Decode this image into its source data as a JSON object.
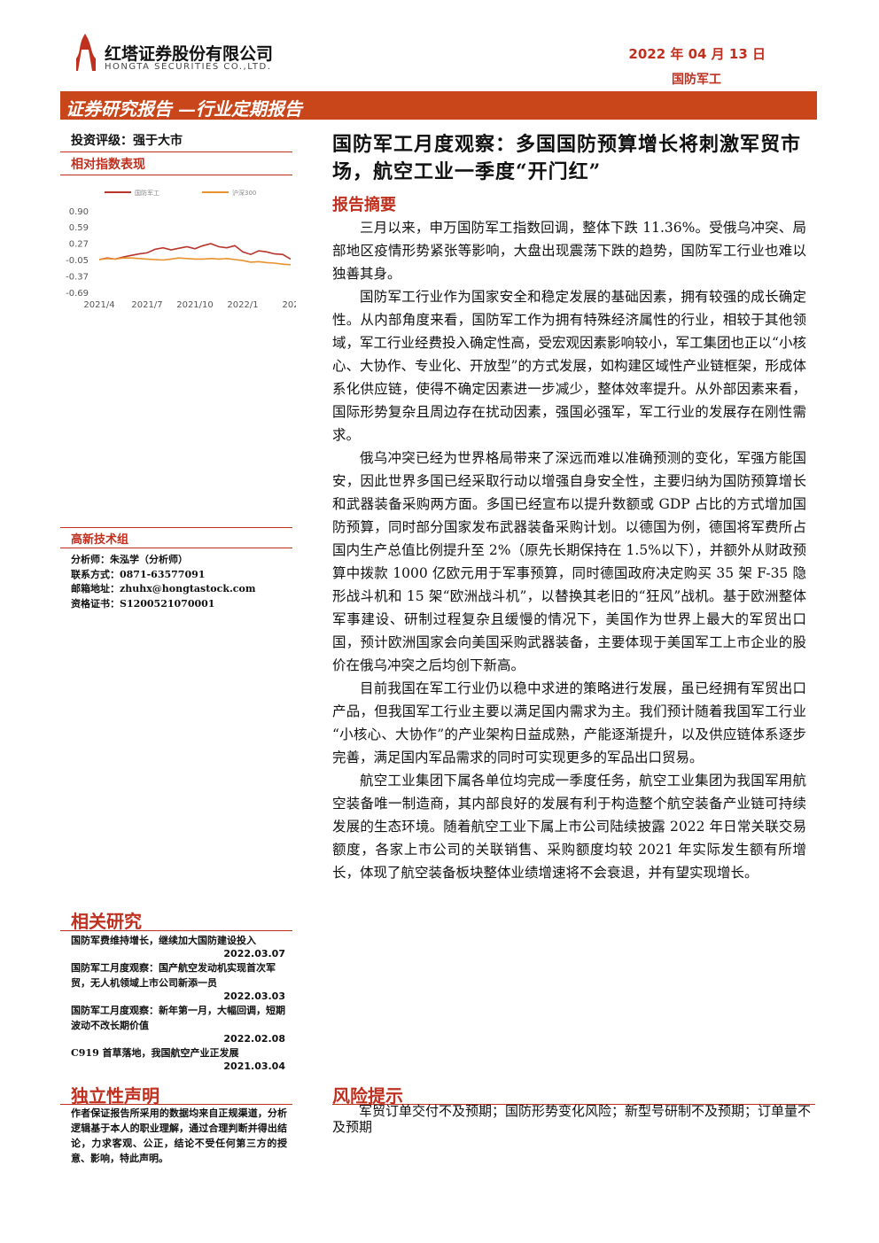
{
  "header": {
    "company": "红塔证券股份有限公司",
    "company_en": "HONGTA SECURITIES CO.,LTD.",
    "date": "2022 年 04 月 13 日",
    "industry": "国防军工",
    "banner": "证券研究报告 —行业定期报告"
  },
  "left": {
    "rating": "投资评级：强于大市",
    "chart_heading": "相对指数表现"
  },
  "chart_data": {
    "type": "line",
    "categories": [
      "2021/4",
      null,
      null,
      null,
      null,
      null,
      "2021/7",
      null,
      null,
      null,
      null,
      null,
      "2021/10",
      null,
      null,
      null,
      null,
      null,
      "2022/1",
      null,
      null,
      null,
      null,
      null,
      "202"
    ],
    "series": [
      {
        "name": "国防军工",
        "color": "#b8352a",
        "values": [
          -0.05,
          -0.02,
          -0.04,
          0.0,
          0.03,
          0.06,
          0.08,
          0.15,
          0.18,
          0.14,
          0.17,
          0.2,
          0.16,
          0.22,
          0.26,
          0.2,
          0.18,
          0.22,
          0.1,
          0.05,
          0.12,
          0.1,
          0.06,
          0.05,
          -0.04
        ]
      },
      {
        "name": "沪深300",
        "color": "#e8922e",
        "values": [
          -0.05,
          -0.03,
          -0.04,
          -0.02,
          -0.02,
          -0.03,
          -0.04,
          -0.05,
          -0.06,
          -0.04,
          -0.02,
          -0.03,
          -0.04,
          -0.04,
          -0.03,
          -0.04,
          -0.03,
          -0.05,
          -0.07,
          -0.1,
          -0.09,
          -0.11,
          -0.12,
          -0.14,
          -0.15
        ]
      }
    ],
    "ylim": [
      -0.69,
      0.9
    ],
    "yticks": [
      {
        "value": 0.9,
        "label": "0.90"
      },
      0.59,
      0.27,
      -0.05,
      -0.37,
      -0.69
    ],
    "legend": "top"
  },
  "team": {
    "group": "高新技术组",
    "lines": [
      "分析师：朱泓学（分析师）",
      "联系方式：0871-63577091",
      "邮箱地址：zhuhx@hongtastock.com",
      "资格证书：S1200521070001"
    ]
  },
  "related": {
    "heading": "相关研究",
    "items": [
      {
        "title": "国防军费维持增长，继续加大国防建设投入",
        "date": "2022.03.07"
      },
      {
        "title": "国防军工月度观察：国产航空发动机实现首次军贸，无人机领域上市公司新添一员",
        "date": "2022.03.03"
      },
      {
        "title": "国防军工月度观察：新年第一月，大幅回调，短期波动不改长期价值",
        "date": "2022.02.08"
      },
      {
        "title": "C919 首草落地，我国航空产业正发展",
        "date": "2021.03.04"
      }
    ]
  },
  "statement": {
    "heading": "独立性声明",
    "text": "作者保证报告所采用的数据均来自正规渠道，分析逻辑基于本人的职业理解，通过合理判断并得出结论，力求客观、公正，结论不受任何第三方的授意、影响，特此声明。"
  },
  "report": {
    "title": "国防军工月度观察：多国国防预算增长将刺激军贸市场，航空工业一季度“开门红”",
    "summary_heading": "报告摘要",
    "paragraphs": [
      "三月以来，申万国防军工指数回调，整体下跌 11.36%。受俄乌冲突、局部地区疫情形势紧张等影响，大盘出现震荡下跌的趋势，国防军工行业也难以独善其身。",
      "国防军工行业作为国家安全和稳定发展的基础因素，拥有较强的成长确定性。从内部角度来看，国防军工作为拥有特殊经济属性的行业，相较于其他领域，军工行业经费投入确定性高，受宏观因素影响较小，军工集团也正以“小核心、大协作、专业化、开放型”的方式发展，如构建区域性产业链框架，形成体系化供应链，使得不确定因素进一步减少，整体效率提升。从外部因素来看，国际形势复杂且周边存在扰动因素，强国必强军，军工行业的发展存在刚性需求。",
      "俄乌冲突已经为世界格局带来了深远而难以准确预测的变化，军强方能国安，因此世界多国已经采取行动以增强自身安全性，主要归纳为国防预算增长和武器装备采购两方面。多国已经宣布以提升数额或 GDP 占比的方式增加国防预算，同时部分国家发布武器装备采购计划。以德国为例，德国将军费所占国内生产总值比例提升至 2%（原先长期保持在 1.5%以下），并额外从财政预算中拨款 1000 亿欧元用于军事预算，同时德国政府决定购买 35 架 F-35 隐形战斗机和 15 架“欧洲战斗机”，以替换其老旧的“狂风”战机。基于欧洲整体军事建设、研制过程复杂且缓慢的情况下，美国作为世界上最大的军贸出口国，预计欧洲国家会向美国采购武器装备，主要体现于美国军工上市企业的股价在俄乌冲突之后均创下新高。",
      "目前我国在军工行业仍以稳中求进的策略进行发展，虽已经拥有军贸出口产品，但我国军工行业主要以满足国内需求为主。我们预计随着我国军工行业“小核心、大协作”的产业架构日益成熟，产能逐渐提升，以及供应链体系逐步完善，满足国内军品需求的同时可实现更多的军品出口贸易。",
      "航空工业集团下属各单位均完成一季度任务，航空工业集团为我国军用航空装备唯一制造商，其内部良好的发展有利于构造整个航空装备产业链可持续发展的生态环境。随着航空工业下属上市公司陆续披露 2022 年日常关联交易额度，各家上市公司的关联销售、采购额度均较 2021 年实际发生额有所增长，体现了航空装备板块整体业绩增速将不会衰退，并有望实现增长。"
    ],
    "risk_heading": "风险提示",
    "risk_text": "军贸订单交付不及预期；国防形势变化风险；新型号研制不及预期；订单量不及预期"
  }
}
